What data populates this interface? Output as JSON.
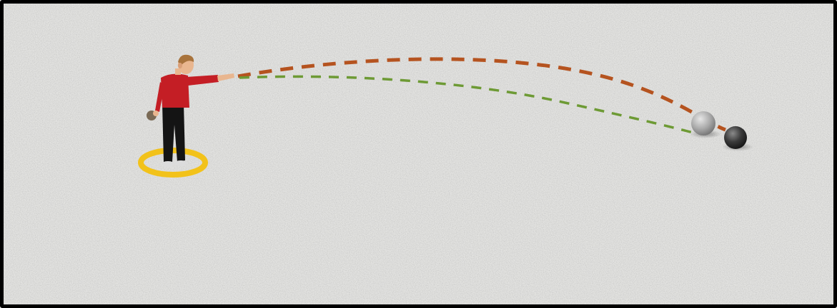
{
  "scene": {
    "colors": {
      "frame": "#000000",
      "ground": "#e3e3e1",
      "throw_ring": "#f2c21a",
      "trajectory_high": "#b5531f",
      "trajectory_low": "#6d9a34",
      "ball_light": "#a9a9a9",
      "ball_dark": "#3a3a3a",
      "shirt": "#c41e25",
      "trousers": "#141414",
      "skin": "#e9b68f",
      "hair": "#a8733c"
    },
    "elements": {
      "ground": "gravel-ground",
      "player": "boy-throwing-ball",
      "ring": "yellow-throwing-circle",
      "path_high": "orange-dashed-arc",
      "path_low": "green-dashed-arc",
      "ball_1": "grey-boule",
      "ball_2": "dark-boule"
    }
  }
}
